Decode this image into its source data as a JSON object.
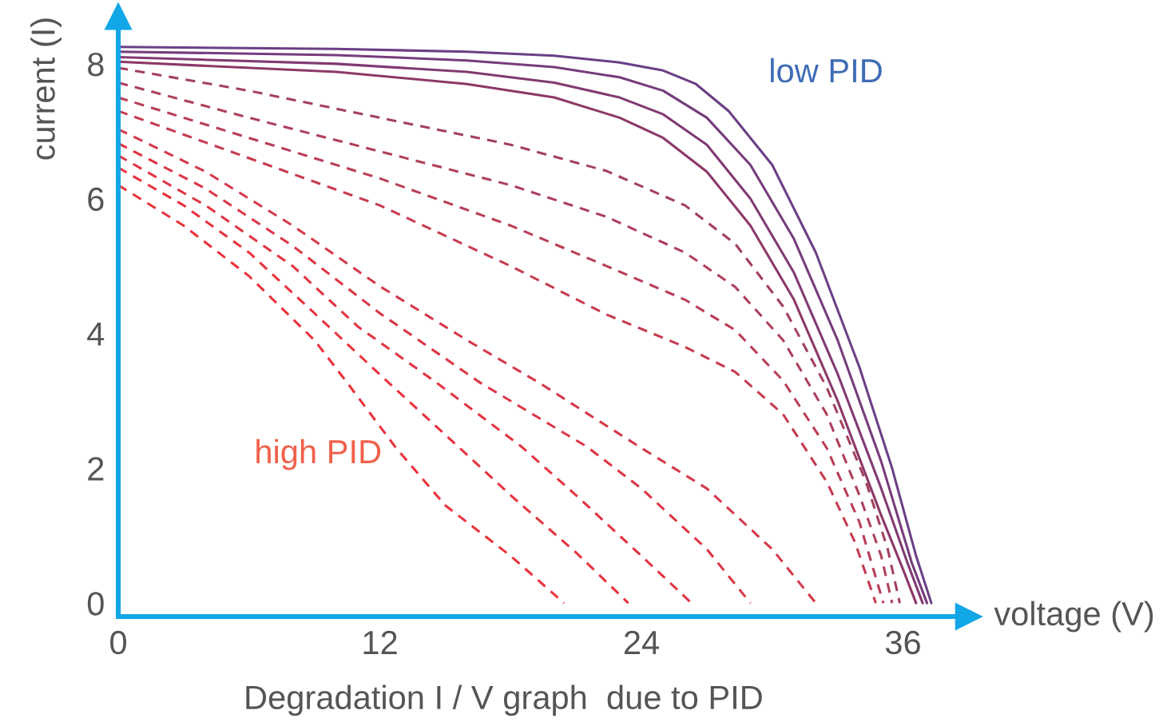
{
  "chart_data": {
    "type": "line",
    "xlabel": "voltage (V)",
    "ylabel": "current (I)",
    "xlim": [
      0,
      39
    ],
    "ylim": [
      -0.2,
      8.7
    ],
    "xticks": [
      0,
      12,
      24,
      36
    ],
    "yticks": [
      0,
      2,
      4,
      6,
      8
    ],
    "grid": false,
    "legend": false,
    "marker": "none",
    "series": [
      {
        "color": "#6b3f86",
        "line_style": "solid",
        "x": [
          0,
          10,
          16,
          20,
          23,
          25,
          26.5,
          28,
          30,
          32,
          34,
          35.5,
          36.6,
          37.3
        ],
        "values": [
          8.25,
          8.22,
          8.18,
          8.12,
          8.02,
          7.9,
          7.7,
          7.3,
          6.5,
          5.2,
          3.5,
          2.0,
          0.7,
          0
        ]
      },
      {
        "color": "#763c7c",
        "line_style": "solid",
        "x": [
          0,
          10,
          16,
          20,
          23,
          25,
          27,
          29,
          31,
          33,
          35,
          36.4,
          37.1
        ],
        "values": [
          8.18,
          8.13,
          8.05,
          7.95,
          7.8,
          7.6,
          7.2,
          6.5,
          5.4,
          3.9,
          2.1,
          0.6,
          0
        ]
      },
      {
        "color": "#813a72",
        "line_style": "solid",
        "x": [
          0,
          10,
          16,
          20,
          23,
          25,
          27,
          29,
          31,
          33,
          35,
          36.2,
          36.9
        ],
        "values": [
          8.1,
          8.0,
          7.88,
          7.72,
          7.5,
          7.25,
          6.8,
          6.0,
          4.9,
          3.4,
          1.7,
          0.6,
          0
        ]
      },
      {
        "color": "#8c3868",
        "line_style": "solid",
        "x": [
          0,
          10,
          16,
          20,
          23,
          25,
          27,
          29,
          31,
          33,
          35,
          36.0,
          36.6
        ],
        "values": [
          8.03,
          7.88,
          7.7,
          7.5,
          7.2,
          6.9,
          6.4,
          5.6,
          4.5,
          3.0,
          1.3,
          0.5,
          0
        ]
      },
      {
        "color": "#a2405f",
        "line_style": "dashed",
        "x": [
          0,
          6,
          12,
          18,
          22.4,
          26,
          28.3,
          30.5,
          32.5,
          34.3,
          35.3,
          35.85
        ],
        "values": [
          7.94,
          7.6,
          7.2,
          6.8,
          6.41,
          5.9,
          5.33,
          4.4,
          3.2,
          1.8,
          0.8,
          0
        ]
      },
      {
        "color": "#ae3f5b",
        "line_style": "dashed",
        "x": [
          0,
          6,
          12,
          18,
          22.4,
          26,
          28.3,
          30.5,
          32.5,
          34,
          35,
          35.5
        ],
        "values": [
          7.72,
          7.2,
          6.7,
          6.2,
          5.73,
          5.2,
          4.69,
          3.9,
          2.8,
          1.6,
          0.7,
          0
        ]
      },
      {
        "color": "#ba3d56",
        "line_style": "dashed",
        "x": [
          0,
          6,
          12,
          18,
          22.4,
          26,
          28.3,
          30.5,
          32.5,
          34,
          35.1
        ],
        "values": [
          7.5,
          6.9,
          6.3,
          5.6,
          5.0,
          4.5,
          4.05,
          3.3,
          2.3,
          1.2,
          0
        ]
      },
      {
        "color": "#c63b50",
        "line_style": "dashed",
        "x": [
          0,
          6,
          12,
          18,
          22.4,
          26,
          28.3,
          30.5,
          32.5,
          33.8,
          34.75
        ],
        "values": [
          7.3,
          6.6,
          5.9,
          5.0,
          4.28,
          3.8,
          3.43,
          2.8,
          1.8,
          0.9,
          0
        ]
      },
      {
        "color": "#d6384a",
        "line_style": "dashed",
        "x": [
          0,
          4,
          8,
          12,
          16,
          19.3,
          24,
          27,
          30,
          32
        ],
        "values": [
          7.03,
          6.4,
          5.6,
          4.7,
          3.9,
          3.27,
          2.3,
          1.7,
          0.8,
          0
        ]
      },
      {
        "color": "#dd3645",
        "line_style": "dashed",
        "x": [
          0,
          4,
          8,
          12,
          16.6,
          21.5,
          24,
          27,
          29
        ],
        "values": [
          6.82,
          6.15,
          5.3,
          4.3,
          3.27,
          2.32,
          1.7,
          0.8,
          0
        ]
      },
      {
        "color": "#e33442",
        "line_style": "dashed",
        "x": [
          0,
          4,
          8,
          11,
          14.6,
          18.5,
          21,
          24,
          26.3
        ],
        "values": [
          6.64,
          5.9,
          5.0,
          4.1,
          3.27,
          2.32,
          1.6,
          0.7,
          0
        ]
      },
      {
        "color": "#e8333f",
        "line_style": "dashed",
        "x": [
          0,
          3,
          6,
          9,
          12.4,
          15.6,
          18,
          21,
          23.4
        ],
        "values": [
          6.46,
          5.9,
          5.2,
          4.3,
          3.27,
          2.32,
          1.6,
          0.75,
          0
        ]
      },
      {
        "color": "#ec323c",
        "line_style": "dashed",
        "x": [
          0,
          3,
          6,
          9,
          10.5,
          12.7,
          15,
          18,
          20.45
        ],
        "values": [
          6.2,
          5.6,
          4.85,
          3.9,
          3.27,
          2.32,
          1.45,
          0.7,
          0
        ]
      }
    ],
    "annotations": [
      "low PID",
      "high PID",
      "Degradation I / V graph  due to PID"
    ]
  }
}
